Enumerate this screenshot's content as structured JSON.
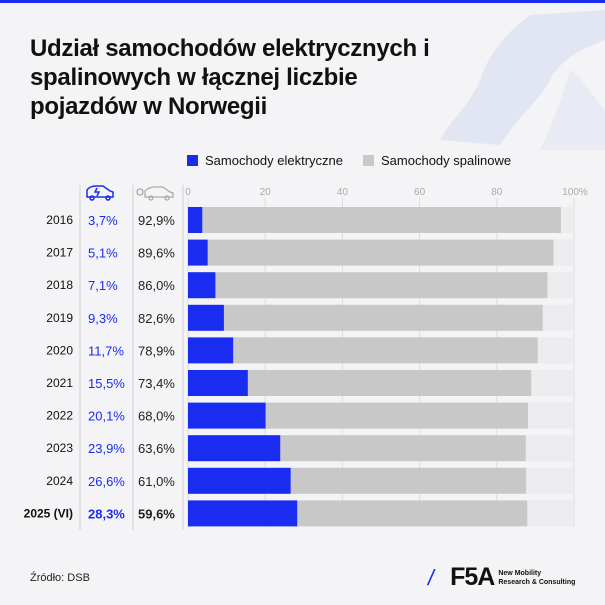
{
  "title": "Udział samochodów elektrycznych i spalinowych w łącznej liczbie pojazdów w Norwegii",
  "source": "Źródło: DSB",
  "logo": {
    "mark": "F5A",
    "tagline_1": "New Mobility",
    "tagline_2": "Research & Consulting"
  },
  "colors": {
    "electric": "#1a2cf0",
    "combustion": "#c8c8c8",
    "rest": "#ececee",
    "accent": "#1a2cf0"
  },
  "icons": {
    "electric_column": "electric-car-icon",
    "combustion_column": "combustion-car-icon"
  },
  "chart_data": {
    "type": "bar",
    "stacked": true,
    "orientation": "horizontal",
    "categories": [
      "2016",
      "2017",
      "2018",
      "2019",
      "2020",
      "2021",
      "2022",
      "2023",
      "2024",
      "2025 (VI)"
    ],
    "series": [
      {
        "name": "Samochody elektryczne",
        "values": [
          3.7,
          5.1,
          7.1,
          9.3,
          11.7,
          15.5,
          20.1,
          23.9,
          26.6,
          28.3
        ],
        "labels": [
          "3,7%",
          "5,1%",
          "7,1%",
          "9,3%",
          "11,7%",
          "15,5%",
          "20,1%",
          "23,9%",
          "26,6%",
          "28,3%"
        ]
      },
      {
        "name": "Samochody spalinowe",
        "values": [
          92.9,
          89.6,
          86.0,
          82.6,
          78.9,
          73.4,
          68.0,
          63.6,
          61.0,
          59.6
        ],
        "labels": [
          "92,9%",
          "89,6%",
          "86,0%",
          "82,6%",
          "78,9%",
          "73,4%",
          "68,0%",
          "63,6%",
          "61,0%",
          "59,6%"
        ]
      }
    ],
    "xlim": [
      0,
      100
    ],
    "x_ticks": [
      "0",
      "20",
      "40",
      "60",
      "80",
      "100%"
    ],
    "legend_position": "top",
    "grid": true
  }
}
